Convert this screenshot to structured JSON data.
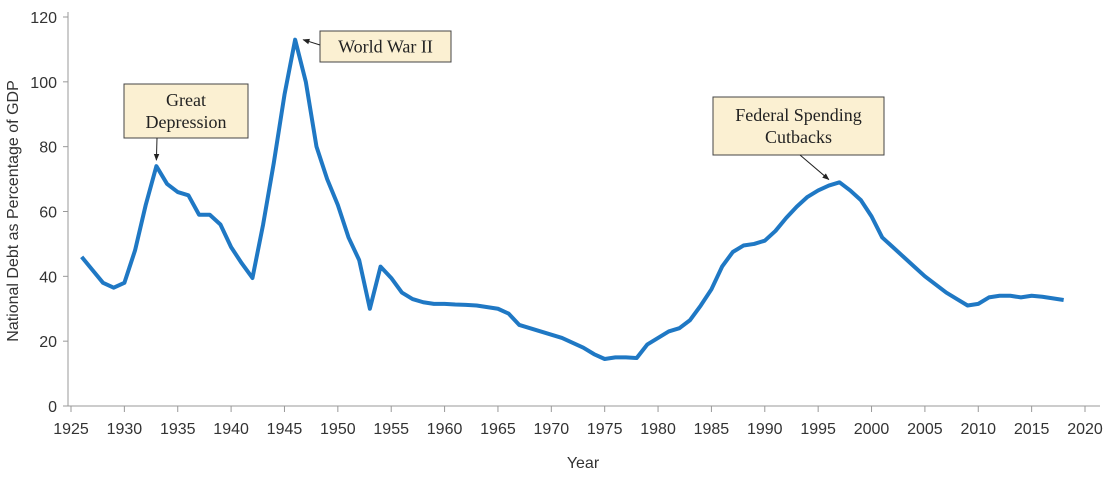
{
  "chart_data": {
    "type": "line",
    "x_label": "Year",
    "y_label": "National Debt as Percentage of GDP",
    "x": [
      1926,
      1927,
      1928,
      1929,
      1930,
      1931,
      1932,
      1933,
      1934,
      1935,
      1936,
      1937,
      1938,
      1939,
      1940,
      1941,
      1942,
      1943,
      1944,
      1945,
      1946,
      1947,
      1948,
      1949,
      1950,
      1951,
      1952,
      1953,
      1954,
      1955,
      1956,
      1957,
      1958,
      1959,
      1960,
      1961,
      1962,
      1963,
      1964,
      1965,
      1966,
      1967,
      1968,
      1969,
      1970,
      1971,
      1972,
      1973,
      1974,
      1975,
      1976,
      1977,
      1978,
      1979,
      1980,
      1981,
      1982,
      1983,
      1984,
      1985,
      1986,
      1987,
      1988,
      1989,
      1990,
      1991,
      1992,
      1993,
      1994,
      1995,
      1996,
      1997,
      1998,
      1999,
      2000,
      2001,
      2002,
      2003,
      2004,
      2005,
      2006,
      2007,
      2008,
      2009,
      2010,
      2011,
      2012,
      2013,
      2014,
      2015,
      2016,
      2017,
      2018
    ],
    "series": [
      {
        "color": "#1f78c4",
        "values": [
          46,
          42,
          38,
          36.5,
          38,
          48,
          62,
          74,
          68.5,
          66,
          65,
          59,
          59,
          56,
          49,
          44,
          39.5,
          56,
          75,
          96,
          113,
          100,
          80,
          70,
          62,
          52,
          45,
          30,
          43,
          39.5,
          35,
          33,
          32,
          31.5,
          31.5,
          31.3,
          31.2,
          31,
          30.5,
          30,
          28.5,
          25,
          24,
          23,
          22,
          21,
          19.5,
          18,
          16,
          14.5,
          15,
          15,
          14.8,
          19,
          21,
          23,
          24,
          26.5,
          31,
          36,
          43,
          47.5,
          49.5,
          50,
          51,
          54,
          58,
          61.5,
          64.5,
          66.5,
          68,
          69,
          66.5,
          63.5,
          58.5,
          52,
          49,
          46,
          43,
          40,
          37.5,
          35,
          33,
          31,
          31.5,
          33.5,
          34,
          34,
          33.5,
          34,
          33.7,
          33.2,
          32.7
        ]
      }
    ],
    "xlim": [
      1925,
      2020
    ],
    "xticks": [
      1925,
      1930,
      1935,
      1940,
      1945,
      1950,
      1955,
      1960,
      1965,
      1970,
      1975,
      1980,
      1985,
      1990,
      1995,
      2000,
      2005,
      2010,
      2015,
      2020
    ],
    "ylim": [
      0,
      120
    ],
    "yticks": [
      0,
      20,
      40,
      60,
      80,
      100,
      120
    ],
    "grid": false,
    "annotations": [
      {
        "lines": [
          "Great",
          "Depression"
        ]
      },
      {
        "lines": [
          "World War II"
        ]
      },
      {
        "lines": [
          "Federal Spending",
          "Cutbacks"
        ]
      }
    ]
  }
}
